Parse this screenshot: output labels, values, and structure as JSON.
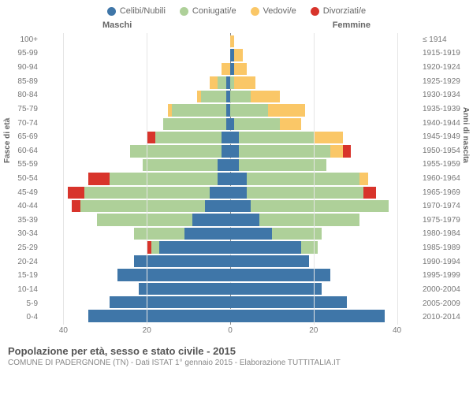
{
  "legend": {
    "items": [
      {
        "label": "Celibi/Nubili",
        "color": "#3f76a8"
      },
      {
        "label": "Coniugati/e",
        "color": "#aed099"
      },
      {
        "label": "Vedovi/e",
        "color": "#fac767"
      },
      {
        "label": "Divorziati/e",
        "color": "#d8342b"
      }
    ]
  },
  "gender": {
    "male": "Maschi",
    "female": "Femmine"
  },
  "axes": {
    "left_title": "Fasce di età",
    "right_title": "Anni di nascita",
    "x_ticks": [
      40,
      20,
      0,
      20,
      40
    ],
    "x_max": 45,
    "age_labels": [
      "100+",
      "95-99",
      "90-94",
      "85-89",
      "80-84",
      "75-79",
      "70-74",
      "65-69",
      "60-64",
      "55-59",
      "50-54",
      "45-49",
      "40-44",
      "35-39",
      "30-34",
      "25-29",
      "20-24",
      "15-19",
      "10-14",
      "5-9",
      "0-4"
    ],
    "birth_labels": [
      "≤ 1914",
      "1915-1919",
      "1920-1924",
      "1925-1929",
      "1930-1934",
      "1935-1939",
      "1940-1944",
      "1945-1949",
      "1950-1954",
      "1955-1959",
      "1960-1964",
      "1965-1969",
      "1970-1974",
      "1975-1979",
      "1980-1984",
      "1985-1989",
      "1990-1994",
      "1995-1999",
      "2000-2004",
      "2005-2009",
      "2010-2014"
    ]
  },
  "data": {
    "male": [
      {
        "c": 0,
        "m": 0,
        "w": 0,
        "d": 0
      },
      {
        "c": 0,
        "m": 0,
        "w": 0,
        "d": 0
      },
      {
        "c": 0,
        "m": 0,
        "w": 2,
        "d": 0
      },
      {
        "c": 1,
        "m": 2,
        "w": 2,
        "d": 0
      },
      {
        "c": 1,
        "m": 6,
        "w": 1,
        "d": 0
      },
      {
        "c": 1,
        "m": 13,
        "w": 1,
        "d": 0
      },
      {
        "c": 1,
        "m": 15,
        "w": 0,
        "d": 0
      },
      {
        "c": 2,
        "m": 16,
        "w": 0,
        "d": 2
      },
      {
        "c": 2,
        "m": 22,
        "w": 0,
        "d": 0
      },
      {
        "c": 3,
        "m": 18,
        "w": 0,
        "d": 0
      },
      {
        "c": 3,
        "m": 26,
        "w": 0,
        "d": 5
      },
      {
        "c": 5,
        "m": 30,
        "w": 0,
        "d": 4
      },
      {
        "c": 6,
        "m": 30,
        "w": 0,
        "d": 2
      },
      {
        "c": 9,
        "m": 23,
        "w": 0,
        "d": 0
      },
      {
        "c": 11,
        "m": 12,
        "w": 0,
        "d": 0
      },
      {
        "c": 17,
        "m": 2,
        "w": 0,
        "d": 1
      },
      {
        "c": 23,
        "m": 0,
        "w": 0,
        "d": 0
      },
      {
        "c": 27,
        "m": 0,
        "w": 0,
        "d": 0
      },
      {
        "c": 22,
        "m": 0,
        "w": 0,
        "d": 0
      },
      {
        "c": 29,
        "m": 0,
        "w": 0,
        "d": 0
      },
      {
        "c": 34,
        "m": 0,
        "w": 0,
        "d": 0
      }
    ],
    "female": [
      {
        "c": 0,
        "m": 0,
        "w": 1,
        "d": 0
      },
      {
        "c": 1,
        "m": 0,
        "w": 2,
        "d": 0
      },
      {
        "c": 1,
        "m": 0,
        "w": 3,
        "d": 0
      },
      {
        "c": 0,
        "m": 1,
        "w": 5,
        "d": 0
      },
      {
        "c": 0,
        "m": 5,
        "w": 7,
        "d": 0
      },
      {
        "c": 0,
        "m": 9,
        "w": 9,
        "d": 0
      },
      {
        "c": 1,
        "m": 11,
        "w": 5,
        "d": 0
      },
      {
        "c": 2,
        "m": 18,
        "w": 7,
        "d": 0
      },
      {
        "c": 2,
        "m": 22,
        "w": 3,
        "d": 2
      },
      {
        "c": 2,
        "m": 21,
        "w": 0,
        "d": 0
      },
      {
        "c": 4,
        "m": 27,
        "w": 2,
        "d": 0
      },
      {
        "c": 4,
        "m": 28,
        "w": 0,
        "d": 3
      },
      {
        "c": 5,
        "m": 33,
        "w": 0,
        "d": 0
      },
      {
        "c": 7,
        "m": 24,
        "w": 0,
        "d": 0
      },
      {
        "c": 10,
        "m": 12,
        "w": 0,
        "d": 0
      },
      {
        "c": 17,
        "m": 4,
        "w": 0,
        "d": 0
      },
      {
        "c": 19,
        "m": 0,
        "w": 0,
        "d": 0
      },
      {
        "c": 24,
        "m": 0,
        "w": 0,
        "d": 0
      },
      {
        "c": 22,
        "m": 0,
        "w": 0,
        "d": 0
      },
      {
        "c": 28,
        "m": 0,
        "w": 0,
        "d": 0
      },
      {
        "c": 37,
        "m": 0,
        "w": 0,
        "d": 0
      }
    ]
  },
  "footer": {
    "title": "Popolazione per età, sesso e stato civile - 2015",
    "subtitle": "COMUNE DI PADERGNONE (TN) - Dati ISTAT 1° gennaio 2015 - Elaborazione TUTTITALIA.IT"
  }
}
